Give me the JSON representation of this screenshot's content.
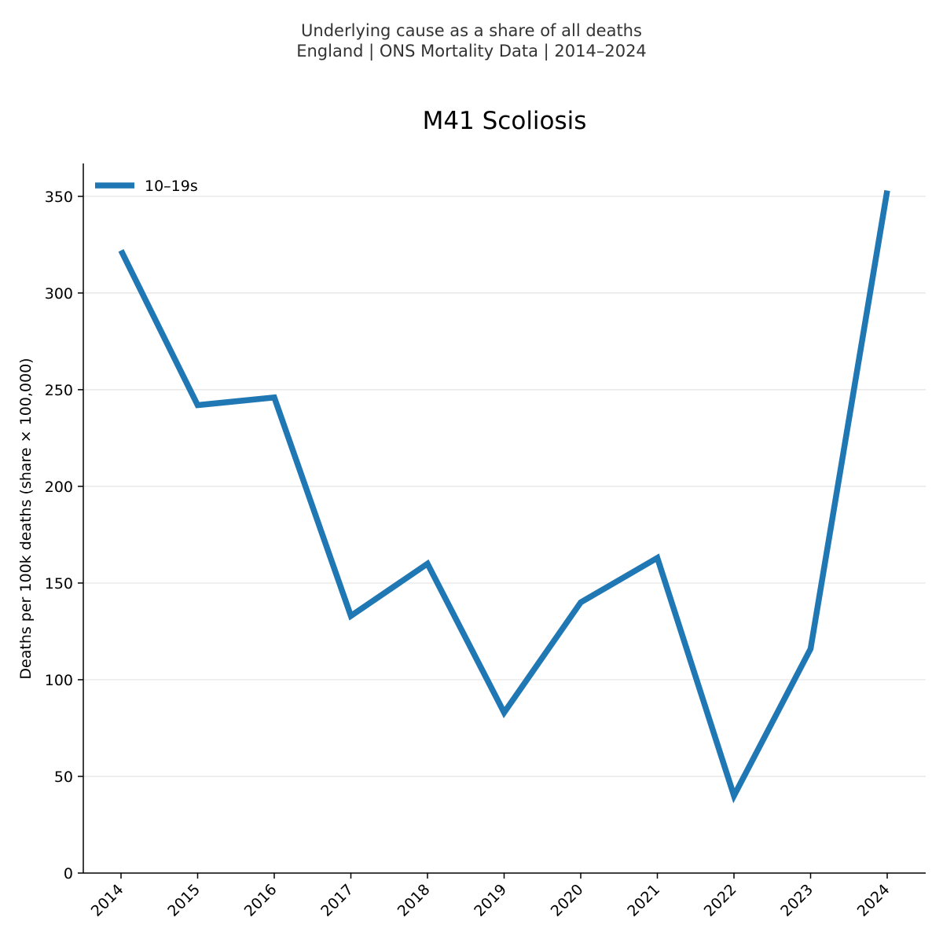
{
  "header": {
    "line1": "Underlying cause as a share of all deaths",
    "line2": "England | ONS Mortality Data | 2014–2024"
  },
  "chart_data": {
    "type": "line",
    "title": "M41 Scoliosis",
    "xlabel": "",
    "ylabel": "Deaths per 100k deaths (share × 100,000)",
    "categories": [
      "2014",
      "2015",
      "2016",
      "2017",
      "2018",
      "2019",
      "2020",
      "2021",
      "2022",
      "2023",
      "2024"
    ],
    "series": [
      {
        "name": "10–19s",
        "color": "#1f77b4",
        "values": [
          322,
          242,
          246,
          133,
          160,
          83,
          140,
          163,
          40,
          116,
          353
        ]
      }
    ],
    "yticks": [
      0,
      50,
      100,
      150,
      200,
      250,
      300,
      350
    ],
    "ylim": [
      0,
      367
    ],
    "grid": "horizontal",
    "legend": "top-left"
  }
}
